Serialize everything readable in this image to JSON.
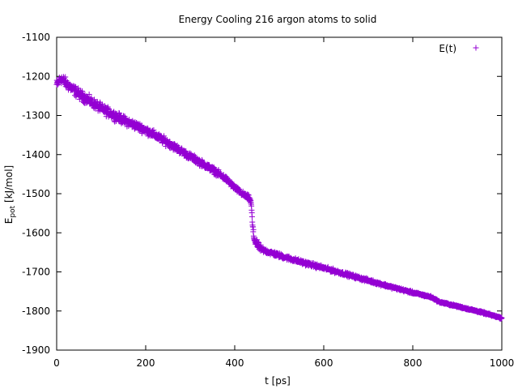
{
  "chart_data": {
    "type": "scatter",
    "title": "Energy Cooling 216 argon atoms to solid",
    "xlabel": "t [ps]",
    "ylabel": {
      "base": "E",
      "sub": "pot",
      "rest": " [kJ/mol]"
    },
    "xlim": [
      0,
      1000
    ],
    "ylim": [
      -1900,
      -1100
    ],
    "xticks": [
      0,
      200,
      400,
      600,
      800,
      1000
    ],
    "yticks": [
      -1100,
      -1200,
      -1300,
      -1400,
      -1500,
      -1600,
      -1700,
      -1800,
      -1900
    ],
    "grid": false,
    "legend_position": "top-right",
    "series": [
      {
        "name": "E(t)",
        "marker": "plus",
        "color": "#9400d3",
        "trend": [
          [
            0,
            -1222
          ],
          [
            10,
            -1205
          ],
          [
            25,
            -1222
          ],
          [
            50,
            -1245
          ],
          [
            100,
            -1282
          ],
          [
            150,
            -1312
          ],
          [
            200,
            -1337
          ],
          [
            250,
            -1370
          ],
          [
            300,
            -1405
          ],
          [
            350,
            -1438
          ],
          [
            380,
            -1462
          ],
          [
            400,
            -1485
          ],
          [
            420,
            -1503
          ],
          [
            433,
            -1512
          ],
          [
            437,
            -1525
          ],
          [
            440,
            -1580
          ],
          [
            443,
            -1612
          ],
          [
            447,
            -1625
          ],
          [
            460,
            -1643
          ],
          [
            500,
            -1658
          ],
          [
            550,
            -1675
          ],
          [
            600,
            -1690
          ],
          [
            650,
            -1706
          ],
          [
            700,
            -1722
          ],
          [
            750,
            -1738
          ],
          [
            800,
            -1753
          ],
          [
            840,
            -1764
          ],
          [
            850,
            -1770
          ],
          [
            860,
            -1777
          ],
          [
            900,
            -1788
          ],
          [
            950,
            -1802
          ],
          [
            1000,
            -1818
          ]
        ]
      }
    ]
  }
}
